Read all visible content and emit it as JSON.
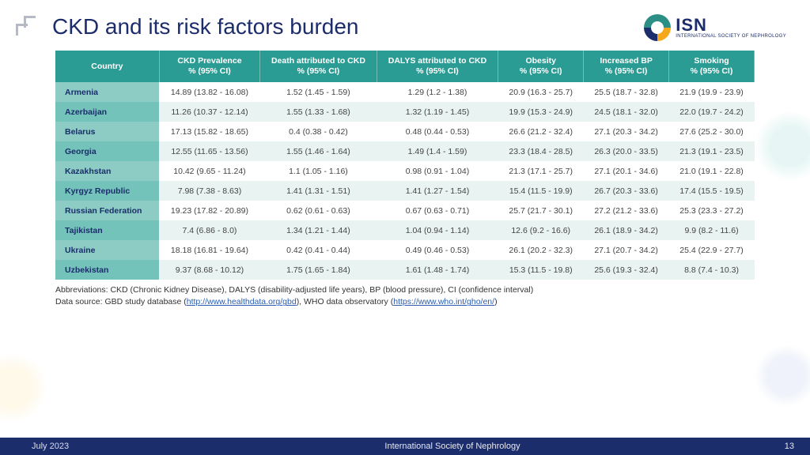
{
  "title": "CKD and its risk factors burden",
  "logo": {
    "acronym": "ISN",
    "full": "INTERNATIONAL SOCIETY\nOF NEPHROLOGY"
  },
  "table": {
    "columns": [
      "Country",
      "CKD Prevalence\n% (95% CI)",
      "Death attributed to CKD\n% (95% CI)",
      "DALYS attributed to CKD\n% (95% CI)",
      "Obesity\n% (95% CI)",
      "Increased BP\n% (95% CI)",
      "Smoking\n% (95% CI)"
    ],
    "rows": [
      [
        "Armenia",
        "14.89 (13.82 - 16.08)",
        "1.52 (1.45 - 1.59)",
        "1.29 (1.2 - 1.38)",
        "20.9 (16.3 - 25.7)",
        "25.5 (18.7 - 32.8)",
        "21.9 (19.9 - 23.9)"
      ],
      [
        "Azerbaijan",
        "11.26 (10.37 - 12.14)",
        "1.55 (1.33 - 1.68)",
        "1.32 (1.19 - 1.45)",
        "19.9 (15.3 - 24.9)",
        "24.5 (18.1 - 32.0)",
        "22.0 (19.7 - 24.2)"
      ],
      [
        "Belarus",
        "17.13 (15.82 - 18.65)",
        "0.4 (0.38 - 0.42)",
        "0.48 (0.44 - 0.53)",
        "26.6 (21.2 - 32.4)",
        "27.1 (20.3 - 34.2)",
        "27.6 (25.2 - 30.0)"
      ],
      [
        "Georgia",
        "12.55 (11.65 - 13.56)",
        "1.55 (1.46 - 1.64)",
        "1.49 (1.4 - 1.59)",
        "23.3 (18.4 - 28.5)",
        "26.3 (20.0 - 33.5)",
        "21.3 (19.1 - 23.5)"
      ],
      [
        "Kazakhstan",
        "10.42 (9.65 - 11.24)",
        "1.1 (1.05 - 1.16)",
        "0.98 (0.91 - 1.04)",
        "21.3 (17.1 - 25.7)",
        "27.1 (20.1 - 34.6)",
        "21.0 (19.1 - 22.8)"
      ],
      [
        "Kyrgyz Republic",
        "7.98 (7.38 - 8.63)",
        "1.41 (1.31 - 1.51)",
        "1.41 (1.27 - 1.54)",
        "15.4 (11.5 - 19.9)",
        "26.7 (20.3 - 33.6)",
        "17.4 (15.5 - 19.5)"
      ],
      [
        "Russian Federation",
        "19.23 (17.82 - 20.89)",
        "0.62 (0.61 - 0.63)",
        "0.67 (0.63 - 0.71)",
        "25.7 (21.7 - 30.1)",
        "27.2 (21.2 - 33.6)",
        "25.3 (23.3 - 27.2)"
      ],
      [
        "Tajikistan",
        "7.4 (6.86 - 8.0)",
        "1.34 (1.21 - 1.44)",
        "1.04 (0.94 - 1.14)",
        "12.6 (9.2 - 16.6)",
        "26.1 (18.9 - 34.2)",
        "9.9 (8.2 - 11.6)"
      ],
      [
        "Ukraine",
        "18.18 (16.81 - 19.64)",
        "0.42 (0.41 - 0.44)",
        "0.49 (0.46 - 0.53)",
        "26.1 (20.2 - 32.3)",
        "27.1 (20.7 - 34.2)",
        "25.4 (22.9 - 27.7)"
      ],
      [
        "Uzbekistan",
        "9.37 (8.68 - 10.12)",
        "1.75 (1.65 - 1.84)",
        "1.61 (1.48 - 1.74)",
        "15.3 (11.5 - 19.8)",
        "25.6 (19.3 - 32.4)",
        "8.8 (7.4 - 10.3)"
      ]
    ],
    "header_bg": "#2b9c93",
    "country_bg": "#74c3bb",
    "row_alt_bg": "#e8f3f2"
  },
  "notes": {
    "line1": "Abbreviations: CKD (Chronic Kidney Disease), DALYS (disability-adjusted life years), BP (blood pressure), CI (confidence interval)",
    "line2_pre": "Data source: GBD study database (",
    "link1": "http://www.healthdata.org/gbd",
    "line2_mid": "), WHO data observatory (",
    "link2": "https://www.who.int/gho/en/",
    "line2_post": ")"
  },
  "footer": {
    "date": "July 2023",
    "org": "International Society of Nephrology",
    "page": "13"
  },
  "colors": {
    "navy": "#1b2d6b",
    "teal": "#2b9c93",
    "teal_light": "#74c3bb"
  }
}
